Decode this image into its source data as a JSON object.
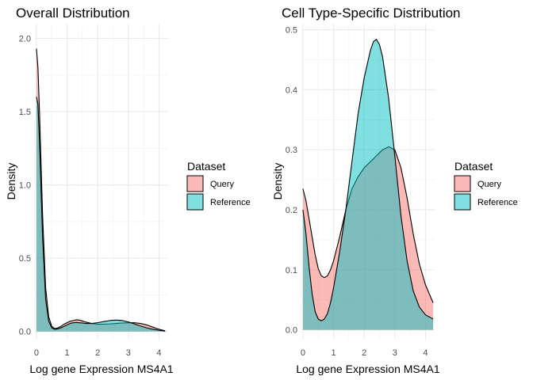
{
  "chart_data": [
    {
      "type": "area",
      "title": "Overall Distribution",
      "xlabel": "Log gene Expression MS4A1",
      "ylabel": "Density",
      "xlim": [
        -0.05,
        4.3
      ],
      "ylim": [
        -0.05,
        2.1
      ],
      "x_ticks": [
        0,
        1,
        2,
        3,
        4
      ],
      "y_ticks": [
        0.0,
        0.5,
        1.0,
        1.5,
        2.0
      ],
      "y_tick_labels": [
        "0.0",
        "0.5",
        "1.0",
        "1.5",
        "2.0"
      ],
      "grid": true,
      "legend": {
        "title": "Dataset",
        "placement": "right",
        "entries": [
          {
            "label": "Query",
            "color": "#F8766D"
          },
          {
            "label": "Reference",
            "color": "#00BFC4"
          }
        ]
      },
      "series": [
        {
          "name": "Query",
          "color": "#F8766D",
          "x": [
            0,
            0.05,
            0.1,
            0.2,
            0.3,
            0.4,
            0.5,
            0.6,
            0.7,
            0.8,
            0.9,
            1.0,
            1.1,
            1.2,
            1.3,
            1.4,
            1.5,
            1.6,
            1.8,
            2.0,
            2.2,
            2.4,
            2.6,
            2.8,
            3.0,
            3.2,
            3.4,
            3.6,
            3.8,
            4.0,
            4.2
          ],
          "values": [
            1.93,
            1.8,
            1.5,
            0.8,
            0.3,
            0.1,
            0.035,
            0.02,
            0.025,
            0.035,
            0.05,
            0.06,
            0.07,
            0.075,
            0.08,
            0.078,
            0.072,
            0.065,
            0.055,
            0.05,
            0.05,
            0.052,
            0.055,
            0.058,
            0.06,
            0.06,
            0.055,
            0.045,
            0.03,
            0.015,
            0.005
          ]
        },
        {
          "name": "Reference",
          "color": "#00BFC4",
          "x": [
            0,
            0.05,
            0.1,
            0.2,
            0.3,
            0.4,
            0.5,
            0.6,
            0.7,
            0.8,
            0.9,
            1.0,
            1.1,
            1.2,
            1.3,
            1.4,
            1.5,
            1.6,
            1.8,
            2.0,
            2.2,
            2.4,
            2.6,
            2.8,
            3.0,
            3.2,
            3.4,
            3.6,
            3.8,
            4.0,
            4.2
          ],
          "values": [
            1.6,
            1.55,
            1.3,
            0.65,
            0.22,
            0.07,
            0.025,
            0.015,
            0.018,
            0.025,
            0.035,
            0.045,
            0.055,
            0.06,
            0.062,
            0.06,
            0.058,
            0.055,
            0.055,
            0.06,
            0.068,
            0.075,
            0.078,
            0.075,
            0.065,
            0.052,
            0.038,
            0.025,
            0.015,
            0.008,
            0.003
          ]
        }
      ]
    },
    {
      "type": "area",
      "title": "Cell Type-Specific Distribution",
      "xlabel": "Log gene Expression MS4A1",
      "ylabel": "Density",
      "xlim": [
        -0.05,
        4.3
      ],
      "ylim": [
        -0.015,
        0.51
      ],
      "x_ticks": [
        0,
        1,
        2,
        3,
        4
      ],
      "y_ticks": [
        0.0,
        0.1,
        0.2,
        0.3,
        0.4,
        0.5
      ],
      "y_tick_labels": [
        "0.0",
        "0.1",
        "0.2",
        "0.3",
        "0.4",
        "0.5"
      ],
      "grid": true,
      "legend": {
        "title": "Dataset",
        "placement": "right",
        "entries": [
          {
            "label": "Query",
            "color": "#F8766D"
          },
          {
            "label": "Reference",
            "color": "#00BFC4"
          }
        ]
      },
      "series": [
        {
          "name": "Query",
          "color": "#F8766D",
          "x": [
            0,
            0.1,
            0.2,
            0.3,
            0.4,
            0.5,
            0.6,
            0.7,
            0.8,
            0.9,
            1.0,
            1.2,
            1.4,
            1.6,
            1.8,
            2.0,
            2.2,
            2.4,
            2.6,
            2.8,
            3.0,
            3.2,
            3.4,
            3.6,
            3.8,
            4.0,
            4.25
          ],
          "values": [
            0.235,
            0.215,
            0.185,
            0.155,
            0.125,
            0.102,
            0.09,
            0.087,
            0.09,
            0.1,
            0.115,
            0.155,
            0.2,
            0.235,
            0.255,
            0.27,
            0.28,
            0.29,
            0.3,
            0.305,
            0.3,
            0.27,
            0.22,
            0.16,
            0.11,
            0.075,
            0.045
          ]
        },
        {
          "name": "Reference",
          "color": "#00BFC4",
          "x": [
            0,
            0.1,
            0.2,
            0.3,
            0.4,
            0.5,
            0.6,
            0.7,
            0.8,
            0.9,
            1.0,
            1.2,
            1.4,
            1.6,
            1.8,
            2.0,
            2.2,
            2.3,
            2.4,
            2.5,
            2.6,
            2.8,
            3.0,
            3.2,
            3.4,
            3.6,
            3.8,
            4.0,
            4.25
          ],
          "values": [
            0.2,
            0.16,
            0.105,
            0.06,
            0.03,
            0.018,
            0.015,
            0.018,
            0.027,
            0.045,
            0.07,
            0.13,
            0.2,
            0.28,
            0.36,
            0.42,
            0.465,
            0.48,
            0.484,
            0.475,
            0.455,
            0.385,
            0.29,
            0.19,
            0.115,
            0.065,
            0.038,
            0.025,
            0.018
          ]
        }
      ]
    }
  ]
}
